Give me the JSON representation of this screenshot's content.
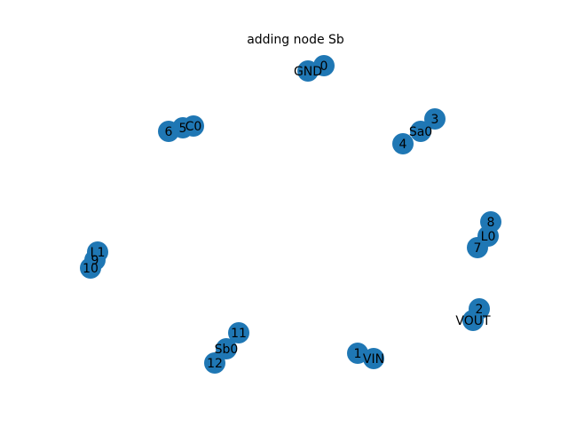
{
  "title": "adding node Sb",
  "node_color": "#1f77b4",
  "nodes": [
    {
      "id": "0",
      "label": "0"
    },
    {
      "id": "GND",
      "label": "GND"
    },
    {
      "id": "3",
      "label": "3"
    },
    {
      "id": "Sa0",
      "label": "Sa0"
    },
    {
      "id": "4",
      "label": "4"
    },
    {
      "id": "C0",
      "label": "C0"
    },
    {
      "id": "5",
      "label": "5"
    },
    {
      "id": "6",
      "label": "6"
    },
    {
      "id": "8",
      "label": "8"
    },
    {
      "id": "L0",
      "label": "L0"
    },
    {
      "id": "7",
      "label": "7"
    },
    {
      "id": "L1",
      "label": "L1"
    },
    {
      "id": "9",
      "label": "9"
    },
    {
      "id": "10",
      "label": "10"
    },
    {
      "id": "2",
      "label": "2"
    },
    {
      "id": "VOUT",
      "label": "VOUT"
    },
    {
      "id": "11",
      "label": "11"
    },
    {
      "id": "Sb0",
      "label": "Sb0"
    },
    {
      "id": "12",
      "label": "12"
    },
    {
      "id": "1",
      "label": "1"
    },
    {
      "id": "VIN",
      "label": "VIN"
    }
  ]
}
